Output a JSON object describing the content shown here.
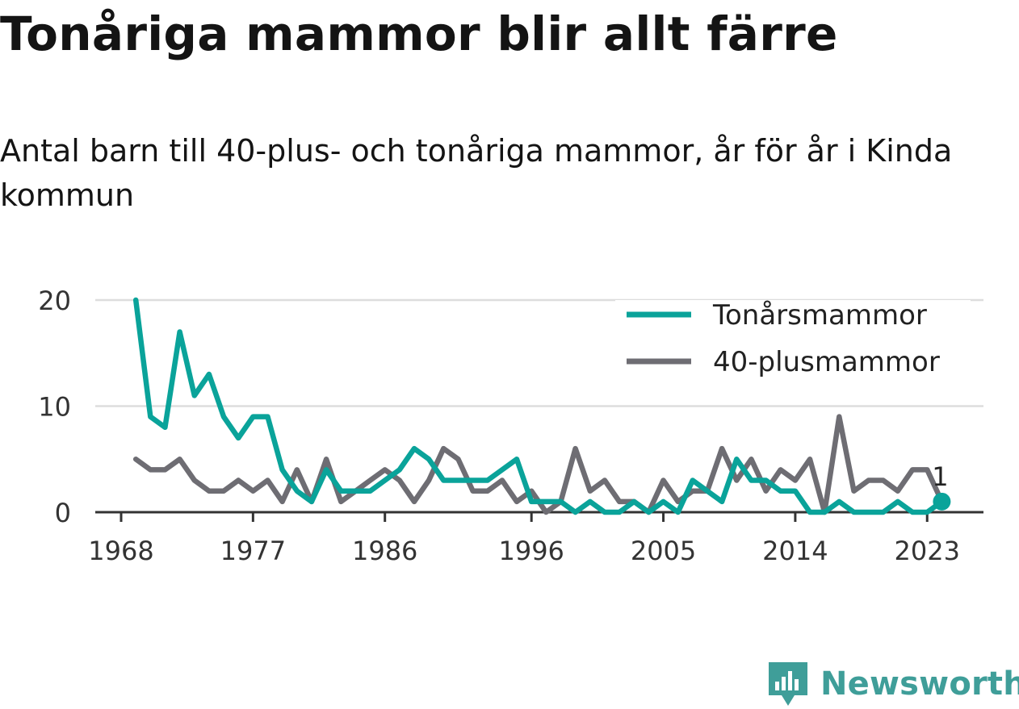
{
  "title": "Tonåriga mammor blir allt färre",
  "subtitle": "Antal barn till 40-plus- och tonåriga mammor, år för år i Kinda kommun",
  "brand": "Newsworthy",
  "colors": {
    "teen": "#0aa39a",
    "forty": "#6e6d73",
    "grid": "#dddddd",
    "axis": "#333333",
    "brand": "#3f9e99"
  },
  "chart_data": {
    "type": "line",
    "x": [
      1969,
      1970,
      1971,
      1972,
      1973,
      1974,
      1975,
      1976,
      1977,
      1978,
      1979,
      1980,
      1981,
      1982,
      1983,
      1984,
      1985,
      1986,
      1987,
      1988,
      1989,
      1990,
      1991,
      1992,
      1993,
      1994,
      1995,
      1996,
      1997,
      1998,
      1999,
      2000,
      2001,
      2002,
      2003,
      2004,
      2005,
      2006,
      2007,
      2008,
      2009,
      2010,
      2011,
      2012,
      2013,
      2014,
      2015,
      2016,
      2017,
      2018,
      2019,
      2020,
      2021,
      2022,
      2023,
      2024
    ],
    "series": [
      {
        "name": "Tonårsmammor",
        "color": "#0aa39a",
        "values": [
          20,
          9,
          8,
          17,
          11,
          13,
          9,
          7,
          9,
          9,
          4,
          2,
          1,
          4,
          2,
          2,
          2,
          3,
          4,
          6,
          5,
          3,
          3,
          3,
          3,
          4,
          5,
          1,
          1,
          1,
          0,
          1,
          0,
          0,
          1,
          0,
          1,
          0,
          3,
          2,
          1,
          5,
          3,
          3,
          2,
          2,
          0,
          0,
          1,
          0,
          0,
          0,
          1,
          0,
          0,
          1
        ]
      },
      {
        "name": "40-plusmammor",
        "color": "#6e6d73",
        "values": [
          5,
          4,
          4,
          5,
          3,
          2,
          2,
          3,
          2,
          3,
          1,
          4,
          1,
          5,
          1,
          2,
          3,
          4,
          3,
          1,
          3,
          6,
          5,
          2,
          2,
          3,
          1,
          2,
          0,
          1,
          6,
          2,
          3,
          1,
          1,
          0,
          3,
          1,
          2,
          2,
          6,
          3,
          5,
          2,
          4,
          3,
          5,
          0,
          9,
          2,
          3,
          3,
          2,
          4,
          4,
          1
        ]
      }
    ],
    "xticks": [
      "1968",
      "1977",
      "1986",
      "1996",
      "2005",
      "2014",
      "2023"
    ],
    "yticks": [
      "0",
      "10",
      "20"
    ],
    "ylim": [
      0,
      20
    ],
    "xlim": [
      1968,
      2025
    ],
    "grid": "horizontal",
    "legend_position": "top-right",
    "end_label": "1"
  }
}
